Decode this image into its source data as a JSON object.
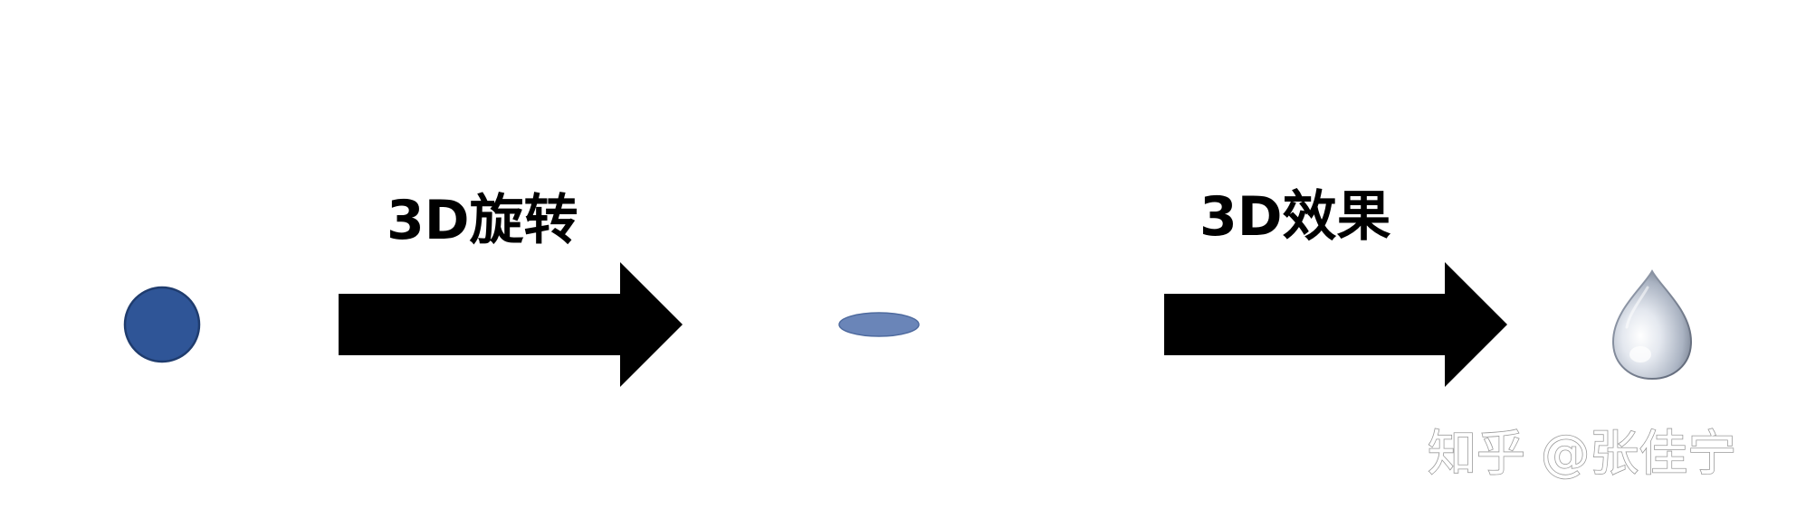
{
  "diagram": {
    "stages": [
      {
        "id": "circle",
        "icon": "flat-circle-icon",
        "color": "#2f5597"
      },
      {
        "id": "ellipse",
        "icon": "flattened-ellipse-icon",
        "color": "#6a85b8"
      },
      {
        "id": "droplet",
        "icon": "3d-droplet-icon",
        "color": "#c9d0dc"
      }
    ],
    "transitions": [
      {
        "label": "3D旋转",
        "icon": "right-arrow-icon",
        "color": "#000000"
      },
      {
        "label": "3D效果",
        "icon": "right-arrow-icon",
        "color": "#000000"
      }
    ]
  },
  "watermark": {
    "text": "知乎 @张佳宁"
  }
}
